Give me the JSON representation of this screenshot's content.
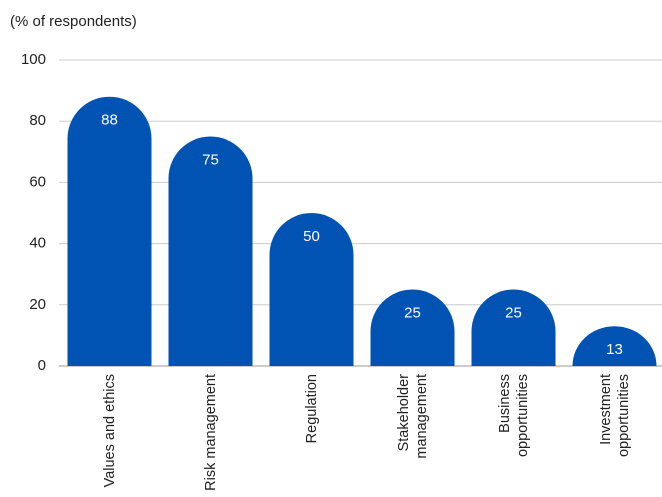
{
  "chart_data": {
    "type": "bar",
    "y_axis_label": "(% of respondents)",
    "categories": [
      "Values and ethics",
      "Risk management",
      "Regulation",
      "Stakeholder management",
      "Business opportunities",
      "Investment opportunities"
    ],
    "values": [
      88,
      75,
      50,
      25,
      25,
      13
    ],
    "color": "#0053b3",
    "ylim": [
      0,
      100
    ],
    "yticks": [
      0,
      20,
      40,
      60,
      80,
      100
    ],
    "grid": true
  }
}
